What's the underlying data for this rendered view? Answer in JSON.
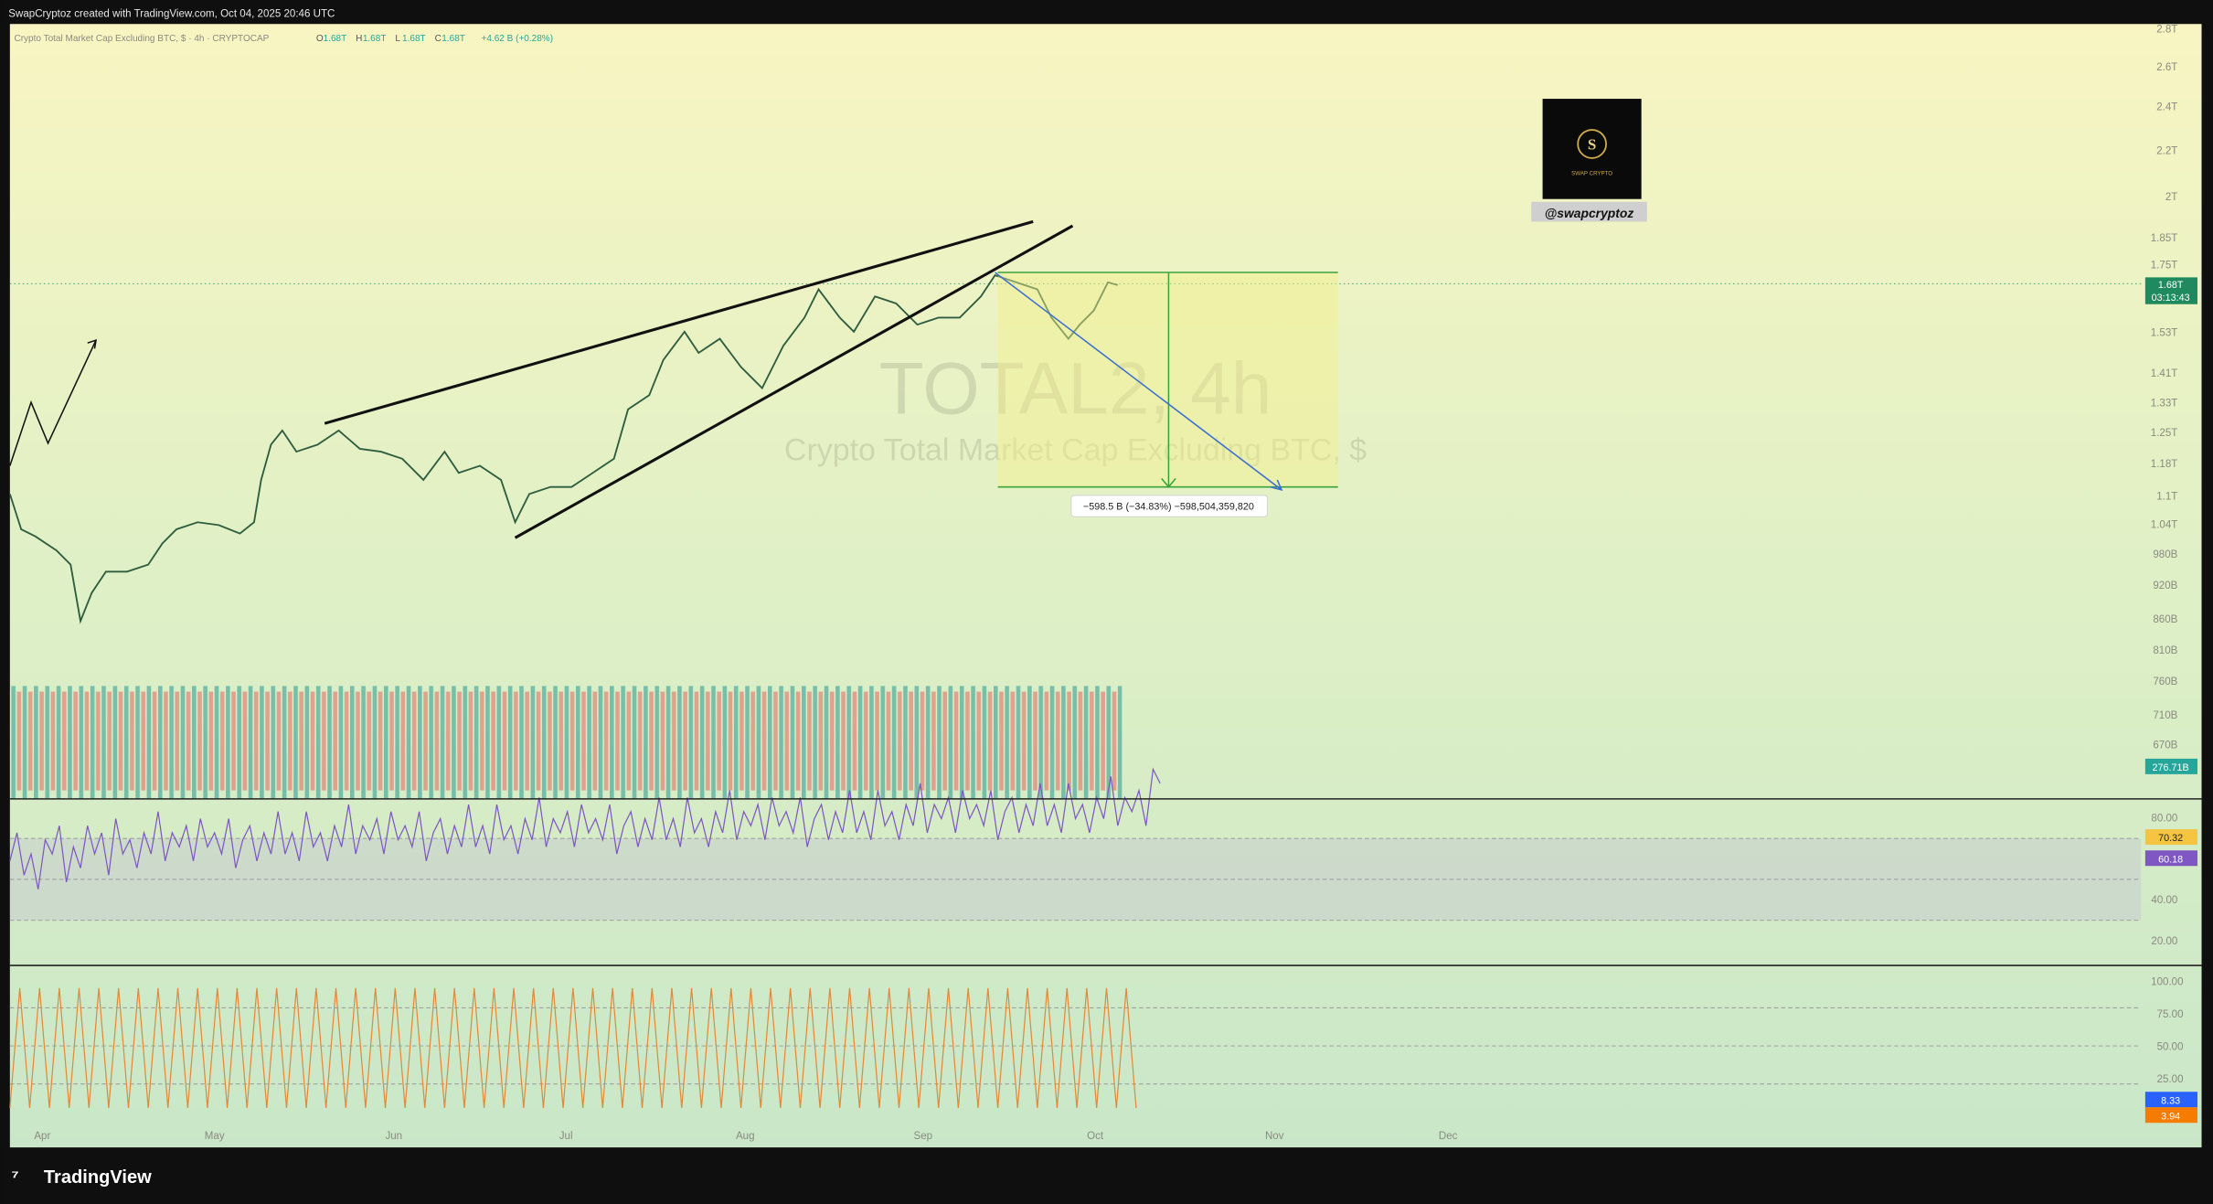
{
  "header": {
    "caption": "SwapCryptoz created with TradingView.com, Oct 04, 2025 20:46 UTC"
  },
  "legend": {
    "symbol": "Crypto Total Market Cap Excluding BTC, $ · 4h · CRYPTOCAP",
    "ohlc": [
      {
        "label": "O",
        "value": "1.68T"
      },
      {
        "label": "H",
        "value": "1.68T"
      },
      {
        "label": "L",
        "value": "1.68T"
      },
      {
        "label": "C",
        "value": "1.68T"
      }
    ],
    "change": "+4.62 B (+0.28%)"
  },
  "watermark": {
    "symbol": "TOTAL2, 4h",
    "description": "Crypto Total Market Cap Excluding BTC, $"
  },
  "price_axis": {
    "labels": [
      "2.8T",
      "2.6T",
      "2.4T",
      "2.2T",
      "2T",
      "1.85T",
      "1.75T",
      "1.53T",
      "1.41T",
      "1.33T",
      "1.25T",
      "1.18T",
      "1.1T",
      "1.04T",
      "980B",
      "920B",
      "860B",
      "810B",
      "760B",
      "710B",
      "670B"
    ],
    "last_price": "1.68T",
    "countdown": "03:13:43",
    "volume": "276.71B"
  },
  "rsi_axis": {
    "labels": [
      "80.00",
      "40.00",
      "20.00"
    ],
    "rsi_ma": "70.32",
    "rsi": "60.18"
  },
  "stoch_axis": {
    "labels": [
      "100.00",
      "75.00",
      "50.00",
      "25.00"
    ],
    "k": "8.33",
    "d": "3.94"
  },
  "time_axis": [
    "Apr",
    "May",
    "Jun",
    "Jul",
    "Aug",
    "Sep",
    "Oct",
    "Nov",
    "Dec"
  ],
  "measure": {
    "label": "−598.5 B (−34.83%) −598,504,359,820"
  },
  "brand": {
    "handle": "@swapcryptoz",
    "logo_letter": "S",
    "logo_text": "SWAP CRYPTO"
  },
  "footer": {
    "logo": "TradingView"
  }
}
